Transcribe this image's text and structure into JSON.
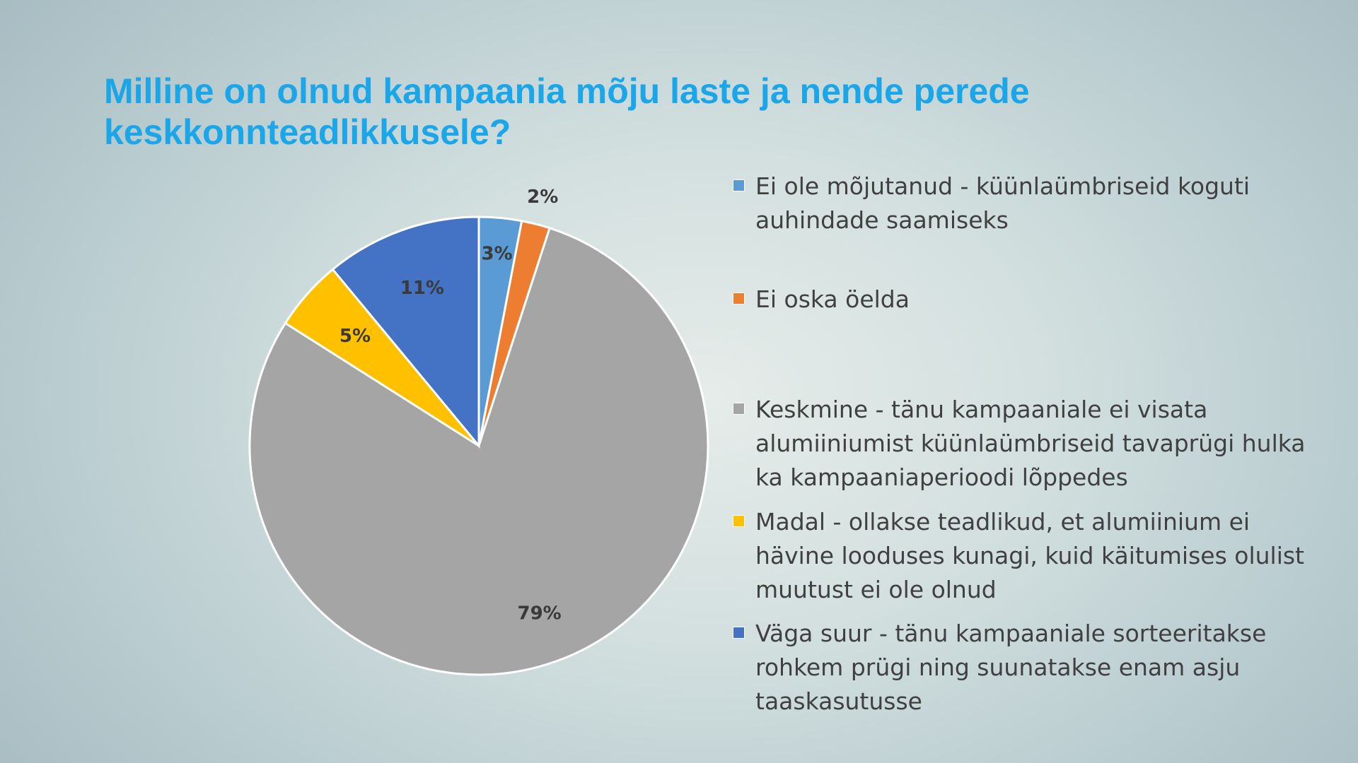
{
  "slide": {
    "title_line1": "Milline on olnud kampaania mõju laste ja nende perede",
    "title_line2": "keskkonnteadlikkusele?"
  },
  "chart_data": {
    "type": "pie",
    "title": "Milline on olnud kampaania mõju laste ja nende perede keskkonnteadlikkusele?",
    "labels_format": "percent",
    "legend_position": "right",
    "slices": [
      {
        "name": "Ei ole mõjutanud - küünlaümbriseid koguti auhindade saamiseks",
        "value": 3,
        "label": "3%",
        "color": "#5b9bd5"
      },
      {
        "name": "Ei oska öelda",
        "value": 2,
        "label": "2%",
        "color": "#ed7d31"
      },
      {
        "name": "Keskmine - tänu kampaaniale ei visata alumiiniumist küünlaümbriseid tavaprügi hulka ka kampaaniaperioodi lõppedes",
        "value": 79,
        "label": "79%",
        "color": "#a5a5a5"
      },
      {
        "name": "Madal - ollakse teadlikud, et alumiinium ei hävine looduses kunagi, kuid käitumises olulist muutust ei ole olnud",
        "value": 5,
        "label": "5%",
        "color": "#ffc000"
      },
      {
        "name": "Väga suur - tänu kampaaniale sorteeritakse rohkem prügi ning suunatakse enam asju taaskasutusse",
        "value": 11,
        "label": "11%",
        "color": "#4472c4"
      }
    ]
  },
  "legend": {
    "items": [
      {
        "lines": [
          "Ei ole mõjutanud - küünlaümbriseid koguti",
          "auhindade saamiseks"
        ]
      },
      {
        "lines": [
          "Ei oska öelda"
        ]
      },
      {
        "lines": [
          "Keskmine - tänu kampaaniale ei visata",
          "alumiiniumist küünlaümbriseid tavaprügi hulka",
          "ka kampaaniaperioodi lõppedes"
        ]
      },
      {
        "lines": [
          "Madal - ollakse teadlikud, et alumiinium ei",
          "hävine looduses kunagi, kuid käitumises olulist",
          "muutust ei ole olnud"
        ]
      },
      {
        "lines": [
          "Väga suur - tänu kampaaniale sorteeritakse",
          "rohkem prügi ning suunatakse enam asju",
          "taaskasutusse"
        ]
      }
    ]
  }
}
